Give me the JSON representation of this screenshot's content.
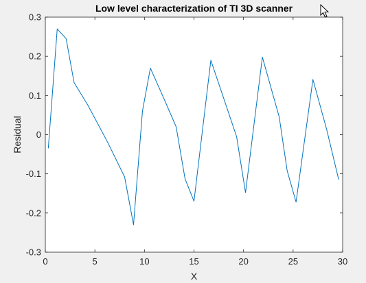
{
  "colors": {
    "figure_background": "#f0f0f0",
    "axes_background": "#ffffff",
    "axes_color": "#262626",
    "series_color": "#0072bd"
  },
  "cursor": {
    "icon": "mouse-pointer-icon"
  },
  "chart_data": {
    "type": "line",
    "title": "Low level characterization of TI 3D scanner",
    "xlabel": "X",
    "ylabel": "Residual",
    "xlim": [
      0,
      30
    ],
    "ylim": [
      -0.3,
      0.3
    ],
    "xticks": [
      0,
      5,
      10,
      15,
      20,
      25,
      30
    ],
    "yticks": [
      -0.3,
      -0.2,
      -0.1,
      0,
      0.1,
      0.2,
      0.3
    ],
    "xtick_labels": [
      "0",
      "5",
      "10",
      "15",
      "20",
      "25",
      "30"
    ],
    "ytick_labels": [
      "-0.3",
      "-0.2",
      "-0.1",
      "0",
      "0.1",
      "0.2",
      "0.3"
    ],
    "grid": false,
    "series": [
      {
        "x": [
          0.3,
          1.2,
          2.1,
          2.9,
          4.3,
          6.3,
          8.0,
          8.9,
          9.8,
          10.6,
          12.0,
          13.2,
          14.1,
          15.0,
          16.7,
          19.3,
          20.2,
          21.9,
          23.6,
          24.4,
          25.3,
          27.0,
          28.4,
          29.6
        ],
        "y": [
          -0.035,
          0.27,
          0.245,
          0.133,
          0.075,
          -0.02,
          -0.108,
          -0.23,
          0.06,
          0.17,
          0.09,
          0.02,
          -0.113,
          -0.17,
          0.19,
          -0.005,
          -0.148,
          0.198,
          0.045,
          -0.092,
          -0.172,
          0.141,
          0.012,
          -0.115
        ]
      }
    ]
  }
}
